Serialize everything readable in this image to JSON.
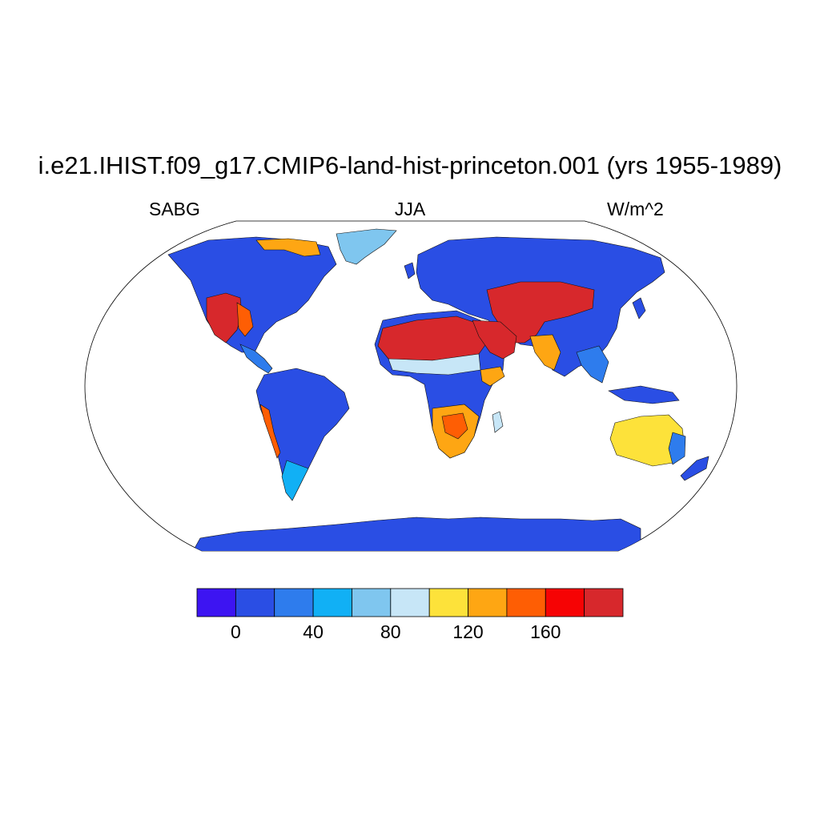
{
  "title": "i.e21.IHIST.f09_g17.CMIP6-land-hist-princeton.001 (yrs 1955-1989)",
  "left_label": "SABG",
  "center_label": "JJA",
  "right_label": "W/m^2",
  "colorbar": {
    "colors": [
      "#3d14f2",
      "#2a4ee4",
      "#2e7ced",
      "#11b0f5",
      "#7fc6ef",
      "#c7e6f7",
      "#fde23a",
      "#fea613",
      "#fe5e04",
      "#f60304",
      "#d7282c"
    ],
    "boundaries": [
      0,
      20,
      40,
      60,
      80,
      100,
      120,
      140,
      160,
      180
    ],
    "tick_labels": [
      "0",
      "40",
      "80",
      "120",
      "160"
    ]
  },
  "map": {
    "projection": "robinson",
    "ocean_color": "#ffffff",
    "regions": [
      {
        "name": "antarctica",
        "color": "#2a4ee4"
      },
      {
        "name": "greenland",
        "color": "#7fc6ef"
      },
      {
        "name": "north-america",
        "color": "#2a4ee4"
      },
      {
        "name": "south-america",
        "color": "#2a4ee4"
      },
      {
        "name": "africa",
        "color": "#2a4ee4"
      },
      {
        "name": "sahara-arabia",
        "color": "#d7282c"
      },
      {
        "name": "eurasia",
        "color": "#2a4ee4"
      },
      {
        "name": "central-asia-deserts",
        "color": "#d7282c"
      },
      {
        "name": "australia",
        "color": "#fde23a"
      }
    ]
  }
}
